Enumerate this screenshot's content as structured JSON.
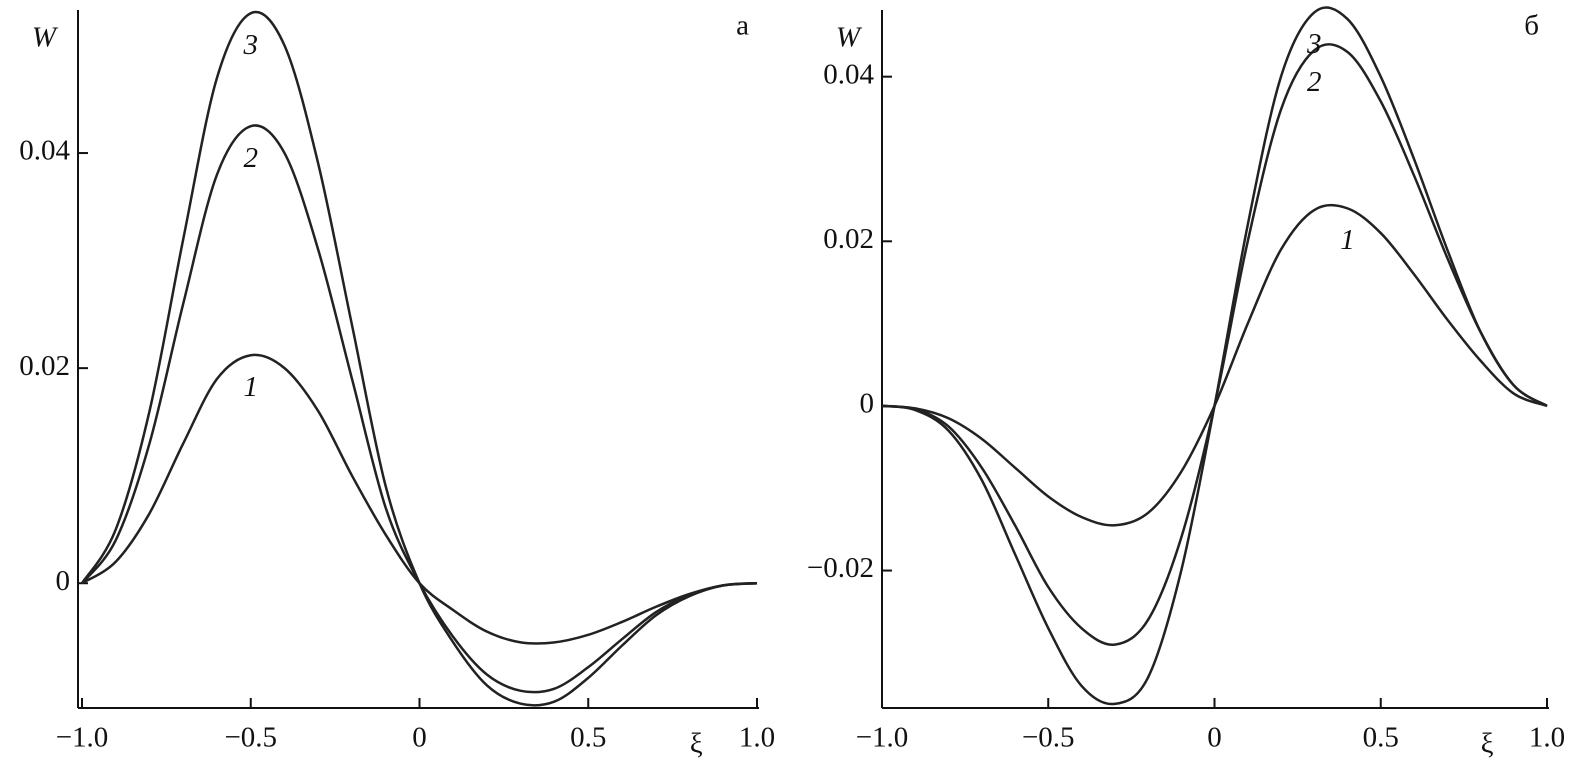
{
  "chart_data": [
    {
      "type": "line",
      "panel_label": "а",
      "ylabel": "W",
      "xlabel": "ξ",
      "x": [
        -1,
        -0.9,
        -0.8,
        -0.7,
        -0.6,
        -0.5,
        -0.4,
        -0.3,
        -0.2,
        -0.1,
        0,
        0.1,
        0.2,
        0.3,
        0.4,
        0.5,
        0.6,
        0.7,
        0.8,
        0.9,
        1
      ],
      "xlim": [
        -1,
        1
      ],
      "xticks": [
        {
          "value": -1,
          "label": "−1.0"
        },
        {
          "value": -0.5,
          "label": "−0.5"
        },
        0,
        0.5,
        {
          "value": 1,
          "label": "1.0"
        }
      ],
      "ylim": [
        -0.0116,
        0.0533
      ],
      "yticks": [
        0,
        0.02,
        0.04
      ],
      "series": [
        {
          "name": "1",
          "color": "#222222",
          "values": [
            0,
            0.002,
            0.0065,
            0.013,
            0.019,
            0.0212,
            0.02,
            0.016,
            0.01,
            0.0045,
            0,
            -0.0025,
            -0.0045,
            -0.0055,
            -0.0055,
            -0.0048,
            -0.0036,
            -0.0022,
            -0.001,
            -0.0002,
            0
          ]
        },
        {
          "name": "2",
          "color": "#222222",
          "values": [
            0,
            0.004,
            0.013,
            0.026,
            0.038,
            0.0425,
            0.04,
            0.031,
            0.019,
            0.007,
            0,
            -0.005,
            -0.0085,
            -0.01,
            -0.0098,
            -0.0078,
            -0.0052,
            -0.0027,
            -0.0011,
            -0.0002,
            0
          ]
        },
        {
          "name": "3",
          "color": "#222222",
          "values": [
            0,
            0.005,
            0.016,
            0.032,
            0.047,
            0.053,
            0.05,
            0.039,
            0.024,
            0.009,
            0,
            -0.0055,
            -0.0095,
            -0.0112,
            -0.011,
            -0.0088,
            -0.0058,
            -0.003,
            -0.0012,
            -0.0002,
            0
          ]
        }
      ]
    },
    {
      "type": "line",
      "panel_label": "б",
      "ylabel": "W",
      "xlabel": "ξ",
      "x": [
        -1,
        -0.9,
        -0.8,
        -0.7,
        -0.6,
        -0.5,
        -0.4,
        -0.3,
        -0.2,
        -0.1,
        0,
        0.1,
        0.2,
        0.3,
        0.4,
        0.5,
        0.6,
        0.7,
        0.8,
        0.9,
        1
      ],
      "xlim": [
        -1,
        1
      ],
      "xticks": [
        {
          "value": -1,
          "label": "−1.0"
        },
        {
          "value": -0.5,
          "label": "−0.5"
        },
        0,
        0.5,
        {
          "value": 1,
          "label": "1.0"
        }
      ],
      "ylim": [
        -0.0367,
        0.0481
      ],
      "yticks": [
        {
          "value": -0.02,
          "label": "−0.02"
        },
        0,
        0.02,
        0.04
      ],
      "series": [
        {
          "name": "1",
          "color": "#222222",
          "values": [
            0,
            -0.0003,
            -0.0015,
            -0.004,
            -0.0075,
            -0.011,
            -0.0135,
            -0.0145,
            -0.013,
            -0.008,
            0,
            0.01,
            0.019,
            0.0238,
            0.024,
            0.021,
            0.016,
            0.0105,
            0.0055,
            0.0015,
            0
          ]
        },
        {
          "name": "2",
          "color": "#222222",
          "values": [
            0,
            -0.0004,
            -0.0025,
            -0.0075,
            -0.0145,
            -0.022,
            -0.027,
            -0.029,
            -0.026,
            -0.016,
            0,
            0.02,
            0.036,
            0.0432,
            0.043,
            0.037,
            0.028,
            0.018,
            0.009,
            0.0025,
            0
          ]
        },
        {
          "name": "3",
          "color": "#222222",
          "values": [
            0,
            -0.0005,
            -0.003,
            -0.009,
            -0.018,
            -0.027,
            -0.034,
            -0.0362,
            -0.033,
            -0.02,
            0,
            0.022,
            0.04,
            0.0478,
            0.047,
            0.04,
            0.03,
            0.019,
            0.009,
            0.0025,
            0
          ]
        }
      ]
    }
  ]
}
